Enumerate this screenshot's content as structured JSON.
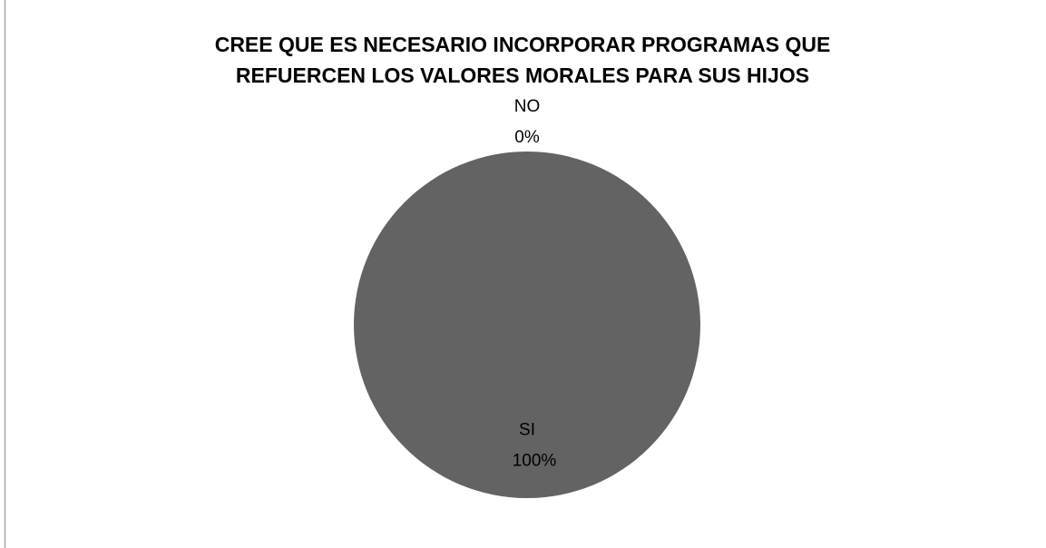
{
  "chart_data": {
    "type": "pie",
    "title": "CREE QUE ES NECESARIO INCORPORAR PROGRAMAS QUE REFUERCEN LOS VALORES MORALES PARA SUS HIJOS",
    "categories": [
      "SI",
      "NO"
    ],
    "values": [
      100,
      0
    ],
    "value_labels": [
      "100%",
      "0%"
    ],
    "colors": [
      "#636363",
      "#a0a0a0"
    ]
  }
}
